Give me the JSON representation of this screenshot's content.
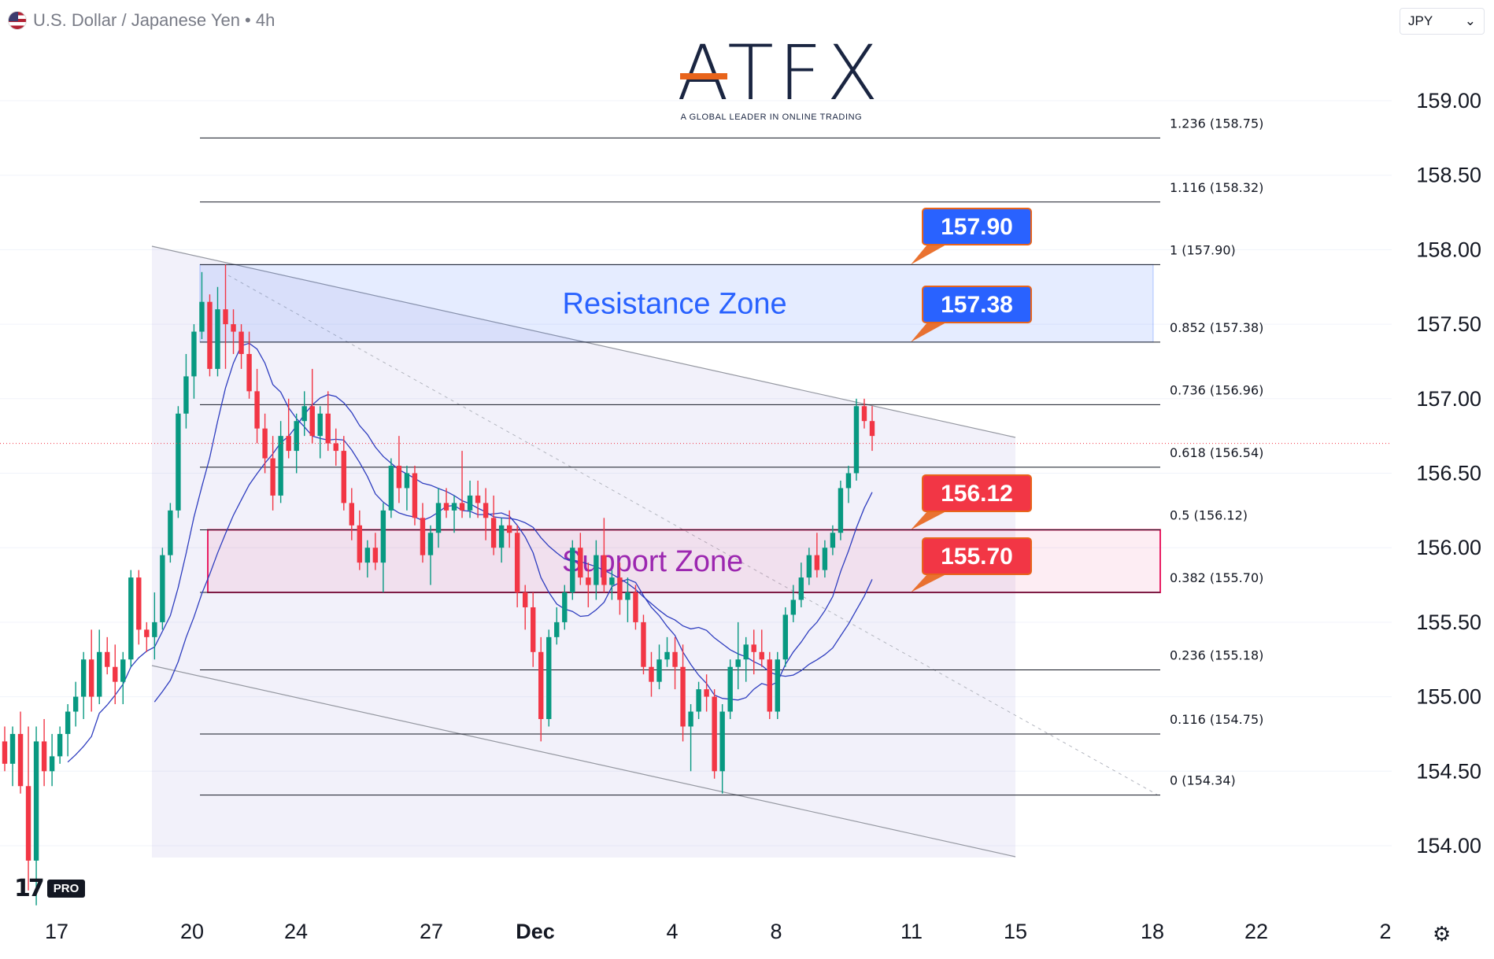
{
  "header": {
    "symbol": "U.S. Dollar / Japanese Yen • 4h",
    "currency_label": "JPY",
    "flag_icon": "us-flag-icon"
  },
  "logo": {
    "main": "ATFX",
    "sub": "A GLOBAL LEADER IN ONLINE TRADING"
  },
  "watermark": {
    "mark": "17",
    "badge": "PRO"
  },
  "chart_data": {
    "type": "candlestick",
    "title": "U.S. Dollar / Japanese Yen • 4h",
    "y_axis": {
      "ticks": [
        "159.00",
        "158.50",
        "158.00",
        "157.50",
        "157.00",
        "156.50",
        "156.00",
        "155.50",
        "155.00",
        "154.50",
        "154.00"
      ],
      "range": [
        153.5,
        159.6
      ],
      "position": "right"
    },
    "x_axis": {
      "labels": [
        "17",
        "20",
        "24",
        "27",
        "Dec",
        "4",
        "8",
        "11",
        "15",
        "18",
        "22",
        "2"
      ]
    },
    "current_price": 156.7,
    "fibonacci_levels": [
      {
        "label": "1.236 (158.75)",
        "value": 158.75
      },
      {
        "label": "1.116 (158.32)",
        "value": 158.32
      },
      {
        "label": "1 (157.90)",
        "value": 157.9
      },
      {
        "label": "0.852 (157.38)",
        "value": 157.38
      },
      {
        "label": "0.736 (156.96)",
        "value": 156.96
      },
      {
        "label": "0.618 (156.54)",
        "value": 156.54
      },
      {
        "label": "0.5 (156.12)",
        "value": 156.12
      },
      {
        "label": "0.382 (155.70)",
        "value": 155.7
      },
      {
        "label": "0.236 (155.18)",
        "value": 155.18
      },
      {
        "label": "0.116 (154.75)",
        "value": 154.75
      },
      {
        "label": "0 (154.34)",
        "value": 154.34
      }
    ],
    "zones": [
      {
        "name": "Resistance Zone",
        "top": 157.9,
        "bottom": 157.38,
        "color": "#2962ff"
      },
      {
        "name": "Support Zone",
        "top": 156.12,
        "bottom": 155.7,
        "color": "#e91e63"
      }
    ],
    "price_tags": [
      {
        "value": "157.90",
        "color": "#2962ff"
      },
      {
        "value": "157.38",
        "color": "#2962ff"
      },
      {
        "value": "156.12",
        "color": "#f23645"
      },
      {
        "value": "155.70",
        "color": "#f23645"
      }
    ],
    "colors": {
      "up": "#089981",
      "down": "#f23645",
      "ma": "#2e3dbf",
      "channel_fill": "#9c8fd9",
      "logo_accent": "#e8641b",
      "logo_main": "#1a2541"
    },
    "candles": [
      [
        154.7,
        154.8,
        154.5,
        154.55
      ],
      [
        154.55,
        154.8,
        154.4,
        154.75
      ],
      [
        154.75,
        154.9,
        154.35,
        154.4
      ],
      [
        154.4,
        154.8,
        153.7,
        153.9
      ],
      [
        153.9,
        154.8,
        153.6,
        154.7
      ],
      [
        154.7,
        154.85,
        154.4,
        154.5
      ],
      [
        154.5,
        154.75,
        154.4,
        154.6
      ],
      [
        154.6,
        154.8,
        154.55,
        154.75
      ],
      [
        154.75,
        154.95,
        154.6,
        154.9
      ],
      [
        154.9,
        155.1,
        154.8,
        155.0
      ],
      [
        155.0,
        155.3,
        154.85,
        155.25
      ],
      [
        155.25,
        155.45,
        154.9,
        155.0
      ],
      [
        155.0,
        155.45,
        154.95,
        155.3
      ],
      [
        155.3,
        155.4,
        155.15,
        155.2
      ],
      [
        155.2,
        155.35,
        154.95,
        155.1
      ],
      [
        155.1,
        155.3,
        154.95,
        155.25
      ],
      [
        155.25,
        155.85,
        155.2,
        155.8
      ],
      [
        155.8,
        155.85,
        155.35,
        155.45
      ],
      [
        155.45,
        155.5,
        155.3,
        155.4
      ],
      [
        155.4,
        155.7,
        155.25,
        155.5
      ],
      [
        155.5,
        156.0,
        155.45,
        155.95
      ],
      [
        155.95,
        156.3,
        155.9,
        156.25
      ],
      [
        156.25,
        156.95,
        156.2,
        156.9
      ],
      [
        156.9,
        157.3,
        156.8,
        157.15
      ],
      [
        157.15,
        157.5,
        157.0,
        157.45
      ],
      [
        157.45,
        157.85,
        157.4,
        157.65
      ],
      [
        157.65,
        157.7,
        157.15,
        157.2
      ],
      [
        157.2,
        157.75,
        157.15,
        157.6
      ],
      [
        157.6,
        157.9,
        157.2,
        157.5
      ],
      [
        157.5,
        157.6,
        157.3,
        157.45
      ],
      [
        157.45,
        157.5,
        157.2,
        157.3
      ],
      [
        157.3,
        157.45,
        157.0,
        157.05
      ],
      [
        157.05,
        157.2,
        156.7,
        156.8
      ],
      [
        156.8,
        156.9,
        156.5,
        156.6
      ],
      [
        156.6,
        156.75,
        156.25,
        156.35
      ],
      [
        156.35,
        156.85,
        156.3,
        156.75
      ],
      [
        156.75,
        157.0,
        156.6,
        156.65
      ],
      [
        156.65,
        156.9,
        156.5,
        156.85
      ],
      [
        156.85,
        157.05,
        156.75,
        156.95
      ],
      [
        156.95,
        157.2,
        156.7,
        156.75
      ],
      [
        156.75,
        156.95,
        156.6,
        156.9
      ],
      [
        156.9,
        157.05,
        156.65,
        156.7
      ],
      [
        156.7,
        156.8,
        156.55,
        156.65
      ],
      [
        156.65,
        156.75,
        156.25,
        156.3
      ],
      [
        156.3,
        156.4,
        156.05,
        156.15
      ],
      [
        156.15,
        156.25,
        155.85,
        155.9
      ],
      [
        155.9,
        156.05,
        155.8,
        156.0
      ],
      [
        156.0,
        156.1,
        155.85,
        155.9
      ],
      [
        155.9,
        156.3,
        155.7,
        156.25
      ],
      [
        156.25,
        156.6,
        156.2,
        156.55
      ],
      [
        156.55,
        156.75,
        156.3,
        156.4
      ],
      [
        156.4,
        156.55,
        156.25,
        156.5
      ],
      [
        156.5,
        156.55,
        156.15,
        156.2
      ],
      [
        156.2,
        156.3,
        155.9,
        155.95
      ],
      [
        155.95,
        156.15,
        155.75,
        156.1
      ],
      [
        156.1,
        156.4,
        156.0,
        156.3
      ],
      [
        156.3,
        156.4,
        156.2,
        156.25
      ],
      [
        156.25,
        156.35,
        156.1,
        156.3
      ],
      [
        156.3,
        156.65,
        156.2,
        156.25
      ],
      [
        156.25,
        156.45,
        156.2,
        156.35
      ],
      [
        156.35,
        156.45,
        156.2,
        156.3
      ],
      [
        156.3,
        156.4,
        156.05,
        156.2
      ],
      [
        156.2,
        156.35,
        155.95,
        156.0
      ],
      [
        156.0,
        156.2,
        155.9,
        156.15
      ],
      [
        156.15,
        156.25,
        156.0,
        156.1
      ],
      [
        156.1,
        156.15,
        155.6,
        155.7
      ],
      [
        155.7,
        155.75,
        155.45,
        155.6
      ],
      [
        155.6,
        155.7,
        155.2,
        155.3
      ],
      [
        155.3,
        155.4,
        154.7,
        154.85
      ],
      [
        154.85,
        155.45,
        154.8,
        155.4
      ],
      [
        155.4,
        155.6,
        155.35,
        155.5
      ],
      [
        155.5,
        155.75,
        155.45,
        155.7
      ],
      [
        155.7,
        156.05,
        155.65,
        156.0
      ],
      [
        156.0,
        156.1,
        155.75,
        155.8
      ],
      [
        155.8,
        155.9,
        155.6,
        155.75
      ],
      [
        155.75,
        156.05,
        155.65,
        155.95
      ],
      [
        155.95,
        156.2,
        155.7,
        155.75
      ],
      [
        155.75,
        155.85,
        155.65,
        155.8
      ],
      [
        155.8,
        155.9,
        155.55,
        155.65
      ],
      [
        155.65,
        155.8,
        155.5,
        155.7
      ],
      [
        155.7,
        155.75,
        155.45,
        155.5
      ],
      [
        155.5,
        155.55,
        155.15,
        155.2
      ],
      [
        155.2,
        155.3,
        155.0,
        155.1
      ],
      [
        155.1,
        155.35,
        155.05,
        155.25
      ],
      [
        155.25,
        155.4,
        155.2,
        155.3
      ],
      [
        155.3,
        155.4,
        155.05,
        155.2
      ],
      [
        155.2,
        155.35,
        154.7,
        154.8
      ],
      [
        154.8,
        154.95,
        154.5,
        154.9
      ],
      [
        154.9,
        155.1,
        154.85,
        155.05
      ],
      [
        155.05,
        155.15,
        154.9,
        155.0
      ],
      [
        155.0,
        155.05,
        154.45,
        154.5
      ],
      [
        154.5,
        154.95,
        154.35,
        154.9
      ],
      [
        154.9,
        155.25,
        154.85,
        155.2
      ],
      [
        155.2,
        155.5,
        155.05,
        155.25
      ],
      [
        155.25,
        155.4,
        155.1,
        155.35
      ],
      [
        155.35,
        155.45,
        155.15,
        155.3
      ],
      [
        155.3,
        155.45,
        155.2,
        155.25
      ],
      [
        155.25,
        155.3,
        154.85,
        154.9
      ],
      [
        154.9,
        155.3,
        154.85,
        155.25
      ],
      [
        155.25,
        155.6,
        155.2,
        155.55
      ],
      [
        155.55,
        155.75,
        155.5,
        155.65
      ],
      [
        155.65,
        155.9,
        155.6,
        155.8
      ],
      [
        155.8,
        156.0,
        155.75,
        155.95
      ],
      [
        155.95,
        156.1,
        155.8,
        155.85
      ],
      [
        155.85,
        156.05,
        155.8,
        156.0
      ],
      [
        156.0,
        156.15,
        155.95,
        156.1
      ],
      [
        156.1,
        156.45,
        156.05,
        156.4
      ],
      [
        156.4,
        156.55,
        156.3,
        156.5
      ],
      [
        156.5,
        157.0,
        156.45,
        156.95
      ],
      [
        156.95,
        157.0,
        156.8,
        156.85
      ],
      [
        156.85,
        156.95,
        156.65,
        156.75
      ]
    ]
  }
}
